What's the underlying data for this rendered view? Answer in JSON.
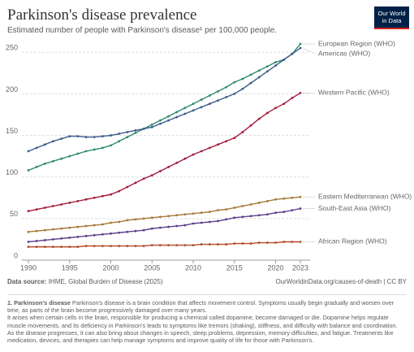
{
  "chart_data": {
    "type": "line",
    "title": "Parkinson's disease prevalence",
    "subtitle": "Estimated number of people with Parkinson's disease¹ per 100,000 people.",
    "logo": [
      "Our World",
      "in Data"
    ],
    "source_label": "Data source:",
    "source": "IHME, Global Burden of Disease (2025)",
    "url": "OurWorldinData.org/causes-of-death | CC BY",
    "footnote_title": "1. Parkinson's disease",
    "footnote": [
      "Parkinson's disease is a brain condition that affects movement control. Symptoms usually begin gradually and worsen over time, as parts of the brain become progressively damaged over many years.",
      "It arises when certain cells in the brain, responsible for producing a chemical called dopamine, become damaged or die. Dopamine helps regulate muscle movements, and its deficiency in Parkinson's leads to symptoms like tremors (shaking), stiffness, and difficulty with balance and coordination.",
      "As the disease progresses, it can also bring about changes in speech, sleep problems, depression, memory difficulties, and fatigue. Treatments like medication, devices, and therapies can help manage symptoms and improve quality of life for those with Parkinson's."
    ],
    "x": [
      1990,
      1991,
      1992,
      1993,
      1994,
      1995,
      1996,
      1997,
      1998,
      1999,
      2000,
      2001,
      2002,
      2003,
      2004,
      2005,
      2006,
      2007,
      2008,
      2009,
      2010,
      2011,
      2012,
      2013,
      2014,
      2015,
      2016,
      2017,
      2018,
      2019,
      2020,
      2021,
      2022,
      2023
    ],
    "xlim": [
      1990,
      2023
    ],
    "xticks": [
      1990,
      1995,
      2000,
      2005,
      2010,
      2015,
      2020,
      2023
    ],
    "ylim": [
      0,
      262
    ],
    "yticks": [
      0,
      50,
      100,
      150,
      200,
      250
    ],
    "grid": true,
    "series": [
      {
        "name": "European Region (WHO)",
        "color": "#2e8b6f",
        "values": [
          108,
          112,
          116,
          119,
          122,
          125,
          128,
          131,
          133,
          135,
          138,
          143,
          148,
          153,
          158,
          163,
          168,
          173,
          178,
          183,
          188,
          193,
          198,
          203,
          208,
          214,
          218,
          223,
          228,
          233,
          238,
          241,
          248,
          260
        ]
      },
      {
        "name": "Americas (WHO)",
        "color": "#3b5b8c",
        "values": [
          131,
          135,
          139,
          143,
          146,
          149,
          149,
          148,
          148,
          149,
          150,
          152,
          154,
          156,
          158,
          160,
          164,
          168,
          172,
          176,
          180,
          184,
          188,
          192,
          196,
          200,
          206,
          213,
          220,
          227,
          234,
          241,
          248,
          255
        ]
      },
      {
        "name": "Western Pacific (WHO)",
        "color": "#a31c3c",
        "values": [
          59,
          61,
          63,
          65,
          67,
          69,
          71,
          73,
          75,
          77,
          79,
          83,
          88,
          93,
          98,
          102,
          107,
          112,
          117,
          122,
          127,
          131,
          135,
          139,
          143,
          147,
          154,
          162,
          170,
          177,
          183,
          188,
          195,
          201
        ]
      },
      {
        "name": "Eastern Mediterranean (WHO)",
        "color": "#a57838",
        "values": [
          34,
          35,
          36,
          37,
          38,
          39,
          40,
          41,
          42,
          43,
          45,
          46,
          48,
          49,
          50,
          51,
          52,
          53,
          54,
          55,
          56,
          57,
          58,
          60,
          61,
          63,
          65,
          67,
          69,
          71,
          73,
          74,
          75,
          76
        ]
      },
      {
        "name": "South-East Asia (WHO)",
        "color": "#5b3e8c",
        "values": [
          22,
          23,
          24,
          25,
          26,
          27,
          28,
          29,
          30,
          31,
          32,
          33,
          34,
          35,
          36,
          38,
          39,
          40,
          41,
          42,
          44,
          45,
          46,
          47,
          49,
          51,
          52,
          53,
          54,
          55,
          57,
          58,
          60,
          62
        ]
      },
      {
        "name": "African Region (WHO)",
        "color": "#b34a26",
        "values": [
          16,
          16,
          16,
          16,
          16,
          16,
          16,
          17,
          17,
          17,
          17,
          17,
          17,
          17,
          17,
          18,
          18,
          18,
          18,
          18,
          18,
          19,
          19,
          19,
          19,
          20,
          20,
          20,
          21,
          21,
          21,
          22,
          22,
          22
        ]
      }
    ]
  }
}
